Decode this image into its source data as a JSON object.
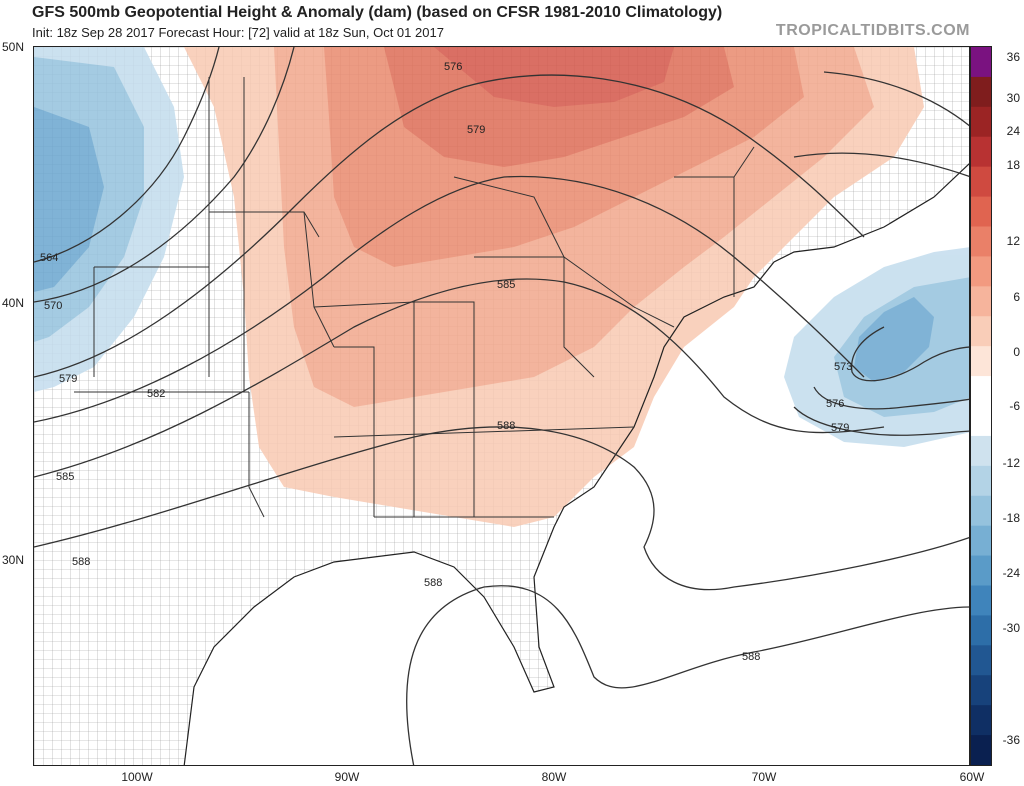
{
  "header": {
    "title": "GFS 500mb Geopotential Height & Anomaly (dam) (based on CFSR 1981-2010 Climatology)",
    "subtitle": "Init: 18z Sep 28 2017   Forecast Hour: [72]   valid at 18z Sun, Oct 01 2017",
    "watermark": "TROPICALTIDBITS.COM"
  },
  "axes": {
    "lat_labels": [
      "50N",
      "40N",
      "30N"
    ],
    "lon_labels": [
      "100W",
      "90W",
      "80W",
      "70W",
      "60W"
    ]
  },
  "colorbar": {
    "labels": [
      "36",
      "30",
      "24",
      "18",
      "12",
      "6",
      "0",
      "-6",
      "-12",
      "-18",
      "-24",
      "-30",
      "-36"
    ],
    "colors": [
      "#7a1280",
      "#7f1d1d",
      "#9b2424",
      "#b83232",
      "#cf4a40",
      "#e06450",
      "#ea8068",
      "#f29a80",
      "#f6b49c",
      "#f9cdb8",
      "#fde5d8",
      "#ffffff",
      "#ffffff",
      "#cfe2ee",
      "#b3d3e6",
      "#95c2dd",
      "#77afd3",
      "#5a9bc8",
      "#3f84bb",
      "#2d6ea8",
      "#215792",
      "#17427b",
      "#0f2f64",
      "#0a2050"
    ]
  },
  "contours": {
    "labels": [
      "564",
      "570",
      "576",
      "579",
      "582",
      "585",
      "588",
      "573",
      "576",
      "579",
      "588",
      "588",
      "579",
      "585",
      "588"
    ]
  }
}
